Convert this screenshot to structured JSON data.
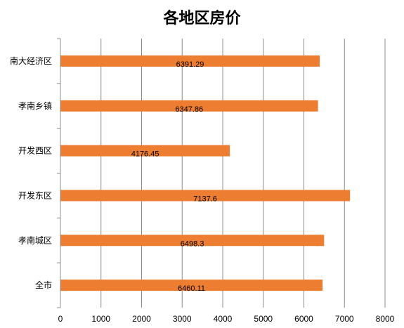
{
  "chart_data": {
    "type": "bar",
    "orientation": "horizontal",
    "title": "各地区房价",
    "categories": [
      "南大经济区",
      "孝南乡镇",
      "开发西区",
      "开发东区",
      "孝南城区",
      "全市"
    ],
    "values": [
      6391.29,
      6347.86,
      4176.45,
      7137.6,
      6498.3,
      6460.11
    ],
    "data_labels": [
      "6391.29",
      "6347.86",
      "4176.45",
      "7137.6",
      "6498.3",
      "6460.11"
    ],
    "xlim": [
      0,
      8000
    ],
    "x_ticks": [
      "0",
      "1000",
      "2000",
      "3000",
      "4000",
      "5000",
      "6000",
      "7000",
      "8000"
    ],
    "bar_color": "#ED7D31",
    "grid": true,
    "legend": "none"
  }
}
